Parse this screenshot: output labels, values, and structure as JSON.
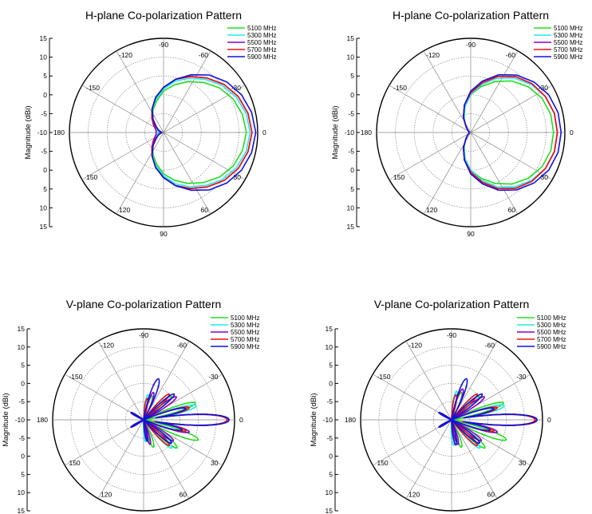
{
  "chart_data": [
    {
      "type": "polar",
      "title": "H-plane Co-polarization Pattern",
      "ylabel": "Magnitude (dBi)",
      "radial_ticks": [
        "15",
        "10",
        "5",
        "0",
        "-5",
        "-10",
        "-5",
        "0",
        "5",
        "10",
        "15"
      ],
      "angle_labels": [
        "-120",
        "-90",
        "-60",
        "-30",
        "0",
        "30",
        "60",
        "90",
        "120",
        "150",
        "180",
        "-150"
      ],
      "rlim": [
        -10,
        15
      ],
      "grid": true,
      "legend_position": "top-right",
      "series": [
        {
          "name": "5100 MHz",
          "color": "#22dd22",
          "r": [
            12,
            11.5,
            10.5,
            9,
            7,
            5,
            3,
            1,
            -1.5,
            -3.5,
            -5.5,
            -7,
            -8,
            -8.5,
            -9,
            -8.5,
            -8,
            -7,
            -5.5,
            -3.5,
            -1.5,
            1,
            3,
            5,
            7,
            9,
            10.5,
            11.5
          ]
        },
        {
          "name": "5300 MHz",
          "color": "#22e8e8",
          "r": [
            13,
            12.5,
            11.5,
            10,
            8,
            6,
            4,
            1.5,
            -1,
            -3,
            -5,
            -7,
            -8,
            -8.5,
            -9,
            -8.5,
            -8,
            -7,
            -5,
            -3,
            -1,
            1.5,
            4,
            6,
            8,
            10,
            11.5,
            12.5
          ]
        },
        {
          "name": "5500 MHz",
          "color": "#8800cc",
          "r": [
            13.5,
            13,
            12,
            10.5,
            8.5,
            6.5,
            4.5,
            2,
            -0.5,
            -3,
            -5,
            -6.5,
            -7.5,
            -8,
            -8,
            -8,
            -7.5,
            -6.5,
            -5,
            -3,
            -0.5,
            2,
            4.5,
            6.5,
            8.5,
            10.5,
            12,
            13
          ]
        },
        {
          "name": "5700 MHz",
          "color": "#ee1111",
          "r": [
            13.5,
            13,
            12,
            10.5,
            8.5,
            6.5,
            4.5,
            2,
            -0.5,
            -3,
            -5,
            -7,
            -8.5,
            -9,
            -9.5,
            -9,
            -8.5,
            -7,
            -5,
            -3,
            -0.5,
            2,
            4.5,
            6.5,
            8.5,
            10.5,
            12,
            13
          ]
        },
        {
          "name": "5900 MHz",
          "color": "#1111dd",
          "r": [
            14.5,
            14,
            13,
            11.5,
            9.5,
            7,
            4.5,
            2,
            -0.5,
            -3,
            -5.5,
            -7.5,
            -8.5,
            -9,
            -9.5,
            -9,
            -8.5,
            -7.5,
            -5.5,
            -3,
            -0.5,
            2,
            4.5,
            7,
            9.5,
            11.5,
            13,
            14
          ]
        }
      ]
    },
    {
      "type": "polar",
      "title": "H-plane Co-polarization Pattern",
      "ylabel": "Magnitude (dBi)",
      "radial_ticks": [
        "15",
        "10",
        "5",
        "0",
        "-5",
        "-10",
        "-5",
        "0",
        "5",
        "10",
        "15"
      ],
      "angle_labels": [
        "-120",
        "-90",
        "-60",
        "-30",
        "0",
        "30",
        "60",
        "90",
        "120",
        "150",
        "180",
        "-150"
      ],
      "rlim": [
        -10,
        15
      ],
      "grid": true,
      "legend_position": "top-right",
      "series": [
        {
          "name": "5100 MHz",
          "color": "#22dd22",
          "r": [
            12,
            11.8,
            11,
            9.5,
            7.5,
            5,
            2.5,
            0,
            -3,
            -6,
            -8,
            -9,
            -9.5,
            -9.5,
            -9.5,
            -9.5,
            -9.5,
            -9,
            -8,
            -6,
            -3,
            0,
            2.5,
            5,
            7.5,
            9.5,
            11,
            11.8
          ]
        },
        {
          "name": "5300 MHz",
          "color": "#22e8e8",
          "r": [
            13,
            12.8,
            12,
            10.5,
            8.5,
            6,
            3,
            0,
            -3,
            -6,
            -8,
            -9,
            -9.5,
            -9.5,
            -9.5,
            -9.5,
            -9.5,
            -9,
            -8,
            -6,
            -3,
            0,
            3,
            6,
            8.5,
            10.5,
            12,
            12.8
          ]
        },
        {
          "name": "5500 MHz",
          "color": "#8800cc",
          "r": [
            13,
            12.8,
            12,
            10.8,
            9,
            6.5,
            3.5,
            0.5,
            -2.5,
            -5.5,
            -8,
            -9,
            -9.5,
            -9.5,
            -9.5,
            -9.5,
            -9.5,
            -9,
            -8,
            -5.5,
            -2.5,
            0.5,
            3.5,
            6.5,
            9,
            10.8,
            12,
            12.8
          ]
        },
        {
          "name": "5700 MHz",
          "color": "#ee1111",
          "r": [
            13,
            12.8,
            12,
            10.8,
            9,
            6.5,
            3.5,
            0.5,
            -2.5,
            -5.5,
            -8,
            -9,
            -9.5,
            -9.5,
            -9.5,
            -9.5,
            -9.5,
            -9,
            -8,
            -5.5,
            -2.5,
            0.5,
            3.5,
            6.5,
            9,
            10.8,
            12,
            12.8
          ]
        },
        {
          "name": "5900 MHz",
          "color": "#1111dd",
          "r": [
            14,
            13.8,
            13,
            11.5,
            9.5,
            7,
            4,
            1,
            -2.5,
            -5.5,
            -8,
            -9,
            -9.5,
            -9.5,
            -9.5,
            -9.5,
            -9.5,
            -9,
            -8,
            -5.5,
            -2.5,
            1,
            4,
            7,
            9.5,
            11.5,
            13,
            13.8
          ]
        }
      ]
    },
    {
      "type": "polar",
      "title": "V-plane Co-polarization Pattern",
      "ylabel": "Magnitude (dBi)",
      "radial_ticks": [
        "15",
        "10",
        "5",
        "0",
        "-5",
        "-10",
        "-5",
        "0",
        "5",
        "10",
        "15"
      ],
      "angle_labels": [
        "-120",
        "-90",
        "-60",
        "-30",
        "0",
        "30",
        "60",
        "90",
        "120",
        "150",
        "180",
        "-150"
      ],
      "rlim": [
        -10,
        15
      ],
      "grid": true,
      "legend_position": "top-right",
      "series": [
        {
          "name": "5100 MHz",
          "color": "#22dd22",
          "lobes": [
            [
              0,
              13.5,
              5
            ],
            [
              -18,
              5,
              5
            ],
            [
              20,
              6,
              5
            ],
            [
              -40,
              0,
              6
            ],
            [
              40,
              2,
              6
            ],
            [
              -70,
              -3,
              8
            ],
            [
              70,
              -2,
              8
            ],
            [
              150,
              -6,
              8
            ],
            [
              -150,
              -6,
              8
            ]
          ]
        },
        {
          "name": "5300 MHz",
          "color": "#22e8e8",
          "lobes": [
            [
              0,
              13,
              5
            ],
            [
              -15,
              5,
              5
            ],
            [
              15,
              3,
              5
            ],
            [
              -45,
              0,
              6
            ],
            [
              45,
              1,
              6
            ],
            [
              -80,
              -3,
              8
            ],
            [
              85,
              -4,
              8
            ],
            [
              150,
              -6,
              8
            ],
            [
              -150,
              -6,
              8
            ]
          ]
        },
        {
          "name": "5500 MHz",
          "color": "#8800cc",
          "lobes": [
            [
              0,
              13.5,
              5
            ],
            [
              -15,
              3,
              5
            ],
            [
              15,
              3,
              5
            ],
            [
              -35,
              1,
              6
            ],
            [
              35,
              0,
              6
            ],
            [
              -70,
              -2,
              8
            ],
            [
              75,
              -3,
              8
            ],
            [
              150,
              -6,
              8
            ],
            [
              -150,
              -6,
              8
            ]
          ]
        },
        {
          "name": "5700 MHz",
          "color": "#ee1111",
          "lobes": [
            [
              0,
              13,
              5
            ],
            [
              -15,
              3,
              5
            ],
            [
              15,
              2,
              5
            ],
            [
              -45,
              0,
              6
            ],
            [
              45,
              0,
              6
            ],
            [
              -80,
              -4,
              8
            ],
            [
              80,
              -4,
              8
            ],
            [
              150,
              -6,
              8
            ],
            [
              -150,
              -6,
              8
            ]
          ]
        },
        {
          "name": "5900 MHz",
          "color": "#1111dd",
          "lobes": [
            [
              0,
              13.5,
              5
            ],
            [
              -15,
              2,
              5
            ],
            [
              15,
              1,
              5
            ],
            [
              -40,
              1,
              6
            ],
            [
              -70,
              2,
              7
            ],
            [
              40,
              0,
              6
            ],
            [
              80,
              -4,
              8
            ],
            [
              150,
              -6,
              8
            ],
            [
              -150,
              -6,
              8
            ]
          ]
        }
      ]
    },
    {
      "type": "polar",
      "title": "V-plane Co-polarization Pattern",
      "ylabel": "Magnitude (dBi)",
      "radial_ticks": [
        "15",
        "10",
        "5",
        "0",
        "-5",
        "-10",
        "-5",
        "0",
        "5",
        "10",
        "15"
      ],
      "angle_labels": [
        "-120",
        "-90",
        "-60",
        "-30",
        "0",
        "30",
        "60",
        "90",
        "120",
        "150",
        "180",
        "-150"
      ],
      "rlim": [
        -10,
        15
      ],
      "grid": true,
      "legend_position": "top-right",
      "series": [
        {
          "name": "5100 MHz",
          "color": "#22dd22",
          "lobes": [
            [
              0,
              13.5,
              5
            ],
            [
              -18,
              5,
              5
            ],
            [
              20,
              6,
              5
            ],
            [
              -40,
              0,
              6
            ],
            [
              40,
              2,
              6
            ],
            [
              -70,
              -2,
              8
            ],
            [
              70,
              -2,
              8
            ],
            [
              150,
              -6,
              8
            ],
            [
              -150,
              -6,
              8
            ]
          ]
        },
        {
          "name": "5300 MHz",
          "color": "#22e8e8",
          "lobes": [
            [
              0,
              13,
              5
            ],
            [
              -15,
              5,
              5
            ],
            [
              15,
              3,
              5
            ],
            [
              -45,
              0,
              6
            ],
            [
              45,
              1,
              6
            ],
            [
              -80,
              -2,
              8
            ],
            [
              85,
              -3,
              8
            ],
            [
              150,
              -6,
              8
            ],
            [
              -150,
              -6,
              8
            ]
          ]
        },
        {
          "name": "5500 MHz",
          "color": "#8800cc",
          "lobes": [
            [
              0,
              13.5,
              5
            ],
            [
              -15,
              3,
              5
            ],
            [
              15,
              3,
              5
            ],
            [
              -35,
              1,
              6
            ],
            [
              35,
              0,
              6
            ],
            [
              -70,
              -1,
              8
            ],
            [
              75,
              -3,
              8
            ],
            [
              150,
              -6,
              8
            ],
            [
              -150,
              -6,
              8
            ]
          ]
        },
        {
          "name": "5700 MHz",
          "color": "#ee1111",
          "lobes": [
            [
              0,
              13,
              5
            ],
            [
              -15,
              3,
              5
            ],
            [
              15,
              2,
              5
            ],
            [
              -45,
              0,
              6
            ],
            [
              45,
              0,
              6
            ],
            [
              -80,
              -3,
              8
            ],
            [
              80,
              -3,
              8
            ],
            [
              150,
              -6,
              8
            ],
            [
              -150,
              -6,
              8
            ]
          ]
        },
        {
          "name": "5900 MHz",
          "color": "#1111dd",
          "lobes": [
            [
              0,
              13.5,
              5
            ],
            [
              -15,
              2,
              5
            ],
            [
              15,
              1,
              5
            ],
            [
              -40,
              1,
              6
            ],
            [
              -70,
              2,
              7
            ],
            [
              40,
              0,
              6
            ],
            [
              80,
              -3,
              8
            ],
            [
              150,
              -6,
              8
            ],
            [
              -150,
              -6,
              8
            ]
          ]
        }
      ]
    }
  ]
}
